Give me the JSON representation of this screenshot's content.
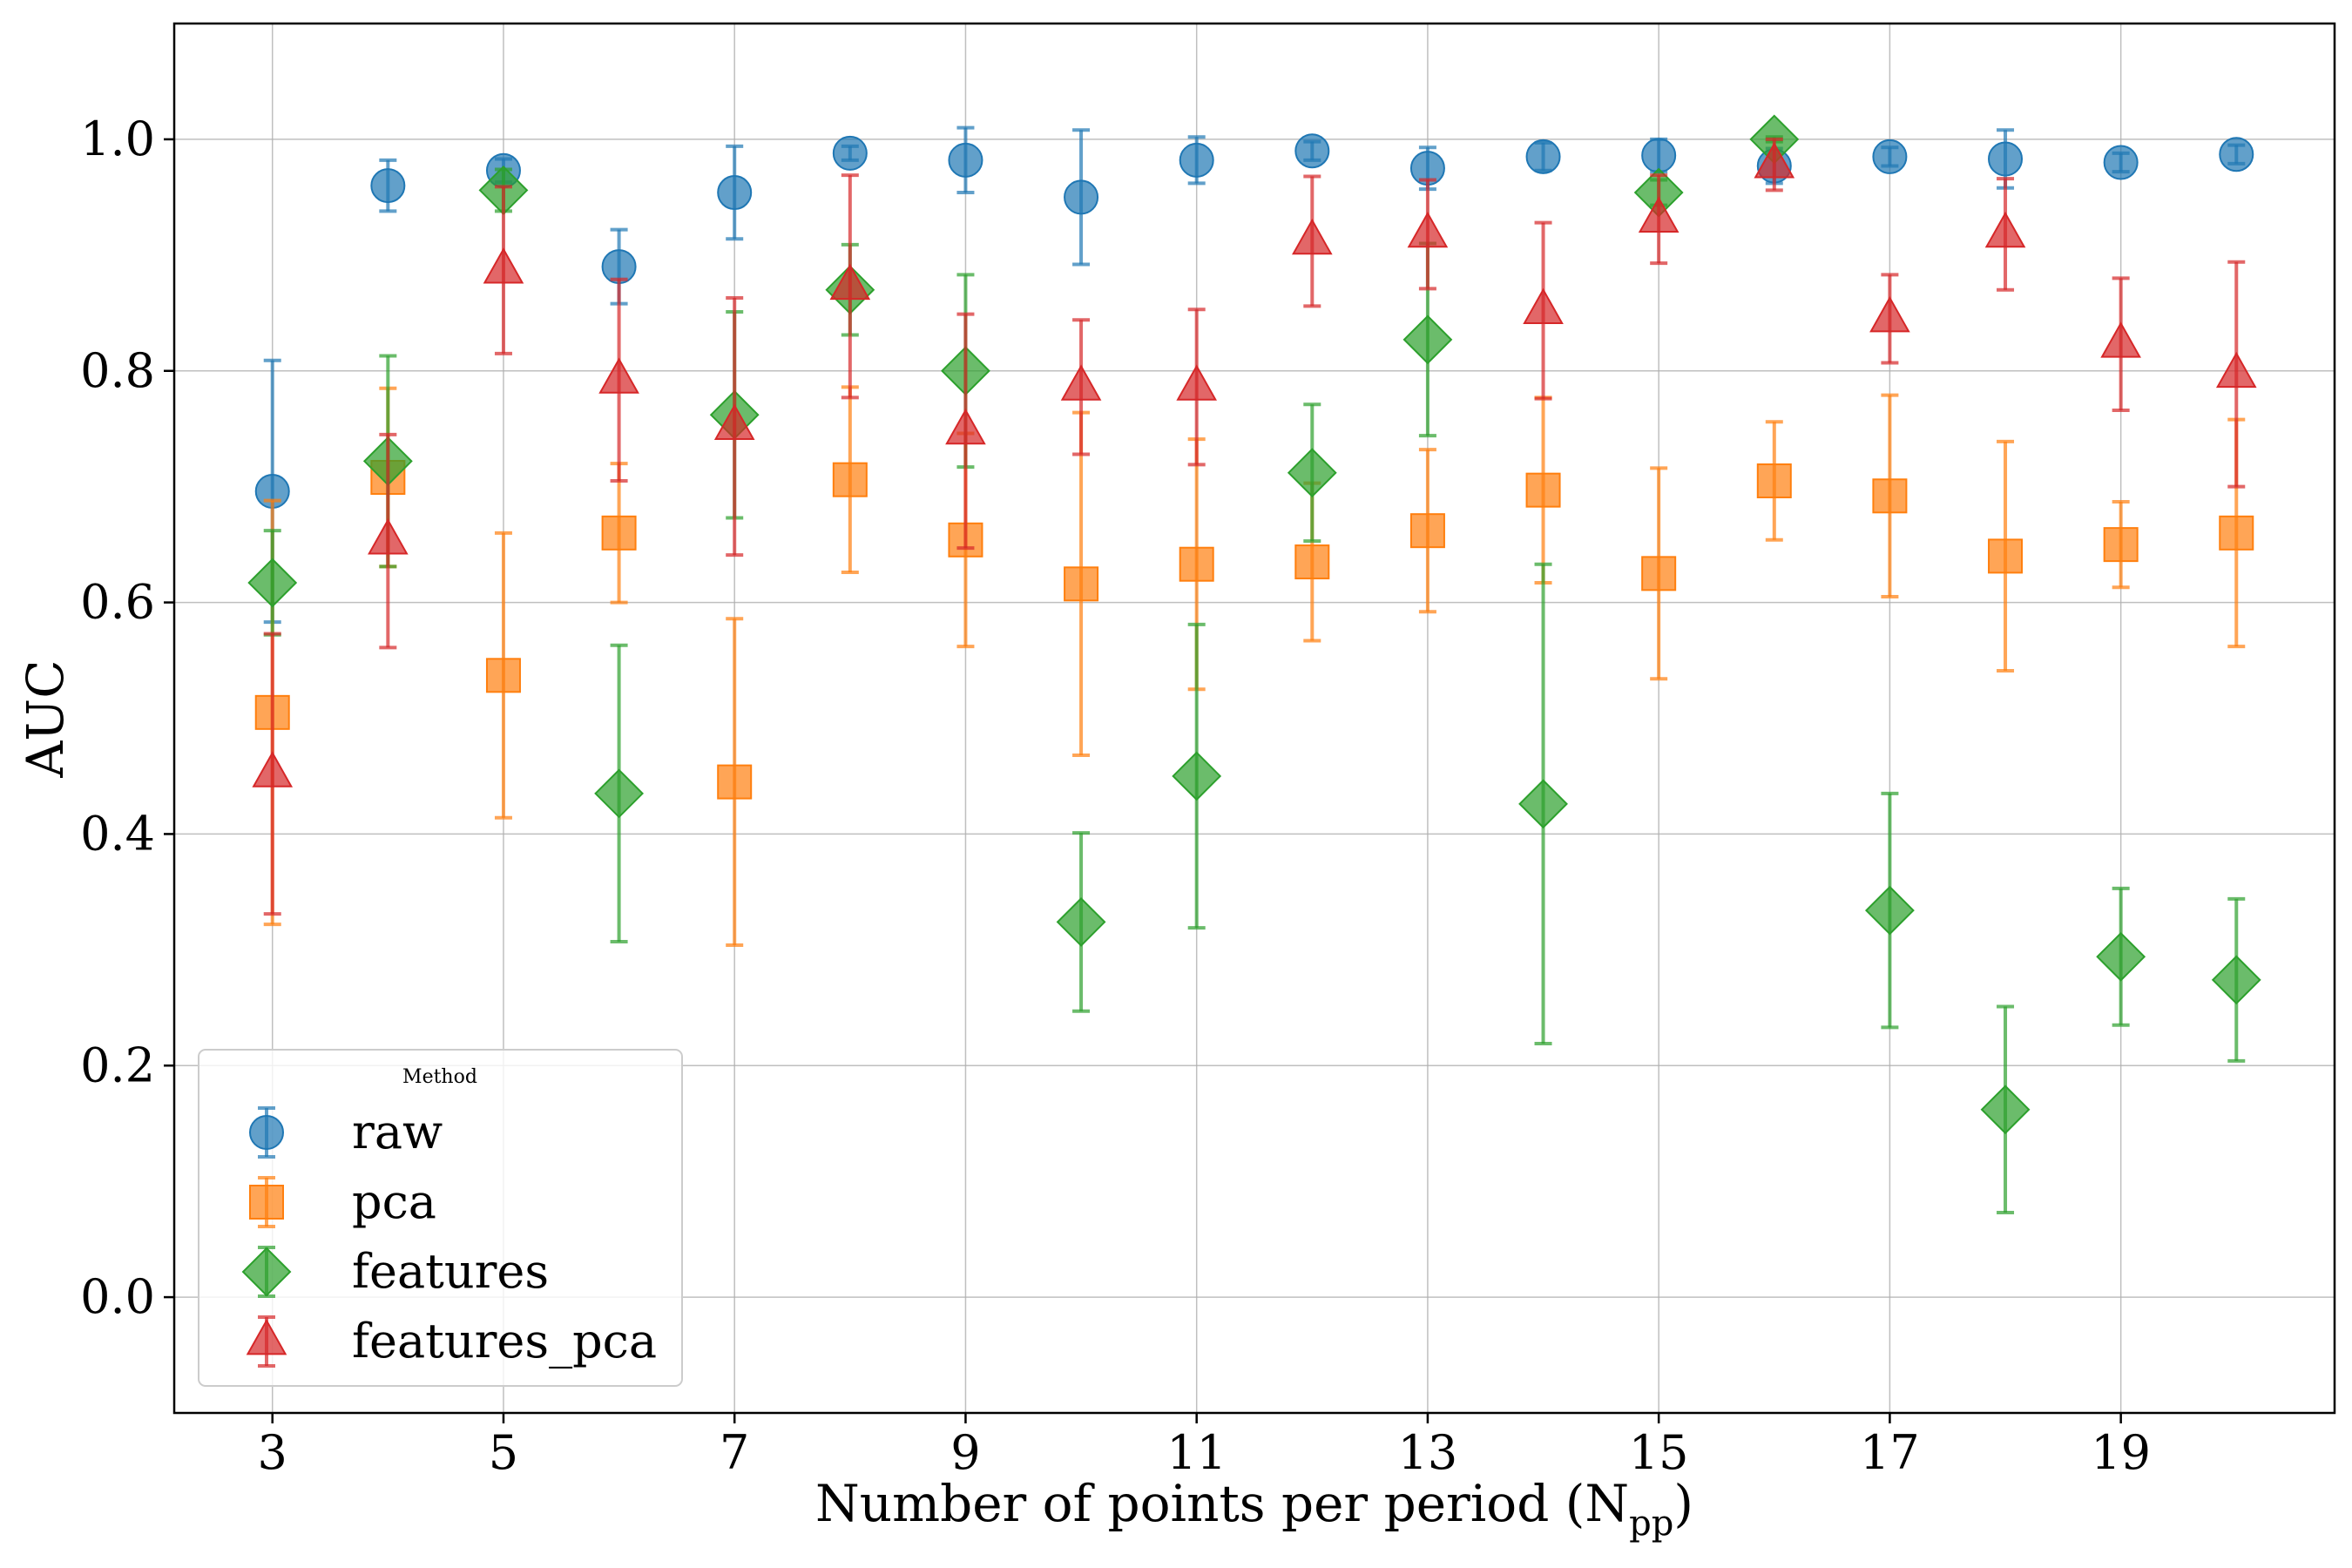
{
  "chart_data": {
    "type": "scatter",
    "xlabel": "Number of points per period (N",
    "xlabel_sub": "pp",
    "xlabel_end": ")",
    "ylabel": "AUC",
    "xlim": [
      2.15,
      20.85
    ],
    "ylim": [
      -0.1,
      1.1
    ],
    "xticks": [
      3,
      5,
      7,
      9,
      11,
      13,
      15,
      17,
      19
    ],
    "yticks": [
      0.0,
      0.2,
      0.4,
      0.6,
      0.8,
      1.0
    ],
    "ytick_labels": [
      "0.0",
      "0.2",
      "0.4",
      "0.6",
      "0.8",
      "1.0"
    ],
    "grid": true,
    "legend": {
      "title": "Method",
      "placement": "lower-left"
    },
    "series": [
      {
        "name": "raw",
        "marker": "circle",
        "color": "#1f77b4",
        "x": [
          3,
          4,
          5,
          6,
          7,
          8,
          9,
          10,
          11,
          12,
          13,
          14,
          15,
          16,
          17,
          18,
          19,
          20
        ],
        "y": [
          0.696,
          0.96,
          0.973,
          0.89,
          0.954,
          0.988,
          0.982,
          0.95,
          0.982,
          0.99,
          0.975,
          0.985,
          0.986,
          0.977,
          0.985,
          0.983,
          0.98,
          0.987
        ],
        "err": [
          0.113,
          0.022,
          0.01,
          0.032,
          0.04,
          0.006,
          0.028,
          0.058,
          0.02,
          0.008,
          0.018,
          0.012,
          0.014,
          0.015,
          0.008,
          0.025,
          0.008,
          0.008
        ]
      },
      {
        "name": "pca",
        "marker": "square",
        "color": "#ff7f0e",
        "x": [
          3,
          4,
          5,
          6,
          7,
          8,
          9,
          10,
          11,
          12,
          13,
          14,
          15,
          16,
          17,
          18,
          19,
          20
        ],
        "y": [
          0.505,
          0.708,
          0.537,
          0.66,
          0.445,
          0.706,
          0.654,
          0.616,
          0.633,
          0.635,
          0.662,
          0.697,
          0.625,
          0.705,
          0.692,
          0.64,
          0.65,
          0.66
        ],
        "err": [
          0.183,
          0.077,
          0.123,
          0.06,
          0.141,
          0.08,
          0.092,
          0.148,
          0.108,
          0.068,
          0.07,
          0.08,
          0.091,
          0.051,
          0.087,
          0.099,
          0.037,
          0.098
        ]
      },
      {
        "name": "features",
        "marker": "diamond",
        "color": "#2ca02c",
        "x": [
          3,
          4,
          5,
          6,
          7,
          8,
          9,
          10,
          11,
          12,
          13,
          14,
          15,
          16,
          17,
          18,
          19,
          20
        ],
        "y": [
          0.617,
          0.722,
          0.956,
          0.435,
          0.762,
          0.87,
          0.8,
          0.324,
          0.45,
          0.712,
          0.827,
          0.426,
          0.954,
          1.0,
          0.334,
          0.162,
          0.294,
          0.274
        ],
        "err": [
          0.045,
          0.091,
          0.018,
          0.128,
          0.089,
          0.039,
          0.083,
          0.077,
          0.131,
          0.059,
          0.083,
          0.207,
          0.011,
          0.002,
          0.101,
          0.089,
          0.059,
          0.07
        ]
      },
      {
        "name": "features_pca",
        "marker": "triangle",
        "color": "#d62728",
        "x": [
          3,
          4,
          5,
          6,
          7,
          8,
          9,
          10,
          11,
          12,
          13,
          14,
          15,
          16,
          17,
          18,
          19,
          20
        ],
        "y": [
          0.452,
          0.653,
          0.887,
          0.792,
          0.752,
          0.873,
          0.748,
          0.786,
          0.786,
          0.912,
          0.918,
          0.852,
          0.931,
          0.978,
          0.845,
          0.918,
          0.823,
          0.797
        ],
        "err": [
          0.121,
          0.092,
          0.072,
          0.087,
          0.111,
          0.096,
          0.101,
          0.058,
          0.067,
          0.056,
          0.047,
          0.076,
          0.038,
          0.022,
          0.038,
          0.048,
          0.057,
          0.097
        ]
      }
    ]
  }
}
